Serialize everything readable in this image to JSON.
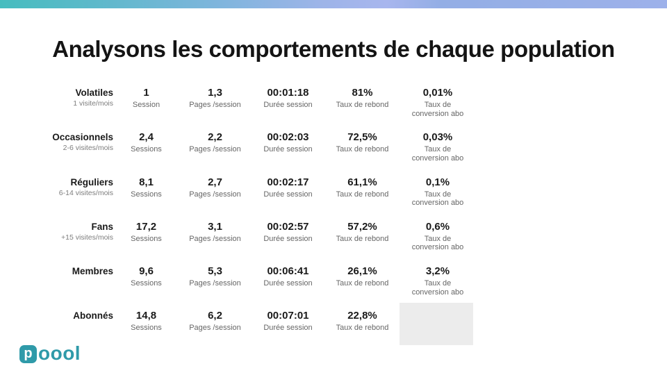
{
  "slide": {
    "title": "Analysons les comportements de chaque population"
  },
  "logo": {
    "brand": "Poool",
    "badge_letter": "p",
    "wordmark_rest": "oool"
  },
  "colors": {
    "brand_teal": "#2f9aa9",
    "topbar_gradient_left": "#46bdbf",
    "topbar_gradient_mid": "#85b6e0",
    "topbar_gradient_right": "#9db1ea",
    "placeholder_gray": "#ececec"
  },
  "chart_data": {
    "type": "table",
    "title": "Analysons les comportements de chaque population",
    "rows": [
      {
        "population": "Volatiles",
        "frequency": "1 visite/mois",
        "metrics": [
          {
            "value": "1",
            "label": "Session"
          },
          {
            "value": "1,3",
            "label": "Pages /session"
          },
          {
            "value": "00:01:18",
            "label": "Durée session"
          },
          {
            "value": "81%",
            "label": "Taux de rebond"
          },
          {
            "value": "0,01%",
            "label": "Taux de conversion abo"
          }
        ]
      },
      {
        "population": "Occasionnels",
        "frequency": "2-6 visites/mois",
        "metrics": [
          {
            "value": "2,4",
            "label": "Sessions"
          },
          {
            "value": "2,2",
            "label": "Pages /session"
          },
          {
            "value": "00:02:03",
            "label": "Durée session"
          },
          {
            "value": "72,5%",
            "label": "Taux de rebond"
          },
          {
            "value": "0,03%",
            "label": "Taux de conversion abo"
          }
        ]
      },
      {
        "population": "Réguliers",
        "frequency": "6-14 visites/mois",
        "metrics": [
          {
            "value": "8,1",
            "label": "Sessions"
          },
          {
            "value": "2,7",
            "label": "Pages /session"
          },
          {
            "value": "00:02:17",
            "label": "Durée session"
          },
          {
            "value": "61,1%",
            "label": "Taux de rebond"
          },
          {
            "value": "0,1%",
            "label": "Taux de conversion abo"
          }
        ]
      },
      {
        "population": "Fans",
        "frequency": "+15 visites/mois",
        "metrics": [
          {
            "value": "17,2",
            "label": "Sessions"
          },
          {
            "value": "3,1",
            "label": "Pages /session"
          },
          {
            "value": "00:02:57",
            "label": "Durée session"
          },
          {
            "value": "57,2%",
            "label": "Taux de rebond"
          },
          {
            "value": "0,6%",
            "label": "Taux de conversion abo"
          }
        ]
      },
      {
        "population": "Membres",
        "frequency": "",
        "metrics": [
          {
            "value": "9,6",
            "label": "Sessions"
          },
          {
            "value": "5,3",
            "label": "Pages /session"
          },
          {
            "value": "00:06:41",
            "label": "Durée session"
          },
          {
            "value": "26,1%",
            "label": "Taux de rebond"
          },
          {
            "value": "3,2%",
            "label": "Taux de conversion abo"
          }
        ]
      },
      {
        "population": "Abonnés",
        "frequency": "",
        "metrics": [
          {
            "value": "14,8",
            "label": "Sessions"
          },
          {
            "value": "6,2",
            "label": "Pages /session"
          },
          {
            "value": "00:07:01",
            "label": "Durée session"
          },
          {
            "value": "22,8%",
            "label": "Taux de rebond"
          },
          {
            "placeholder": true
          }
        ]
      }
    ]
  }
}
